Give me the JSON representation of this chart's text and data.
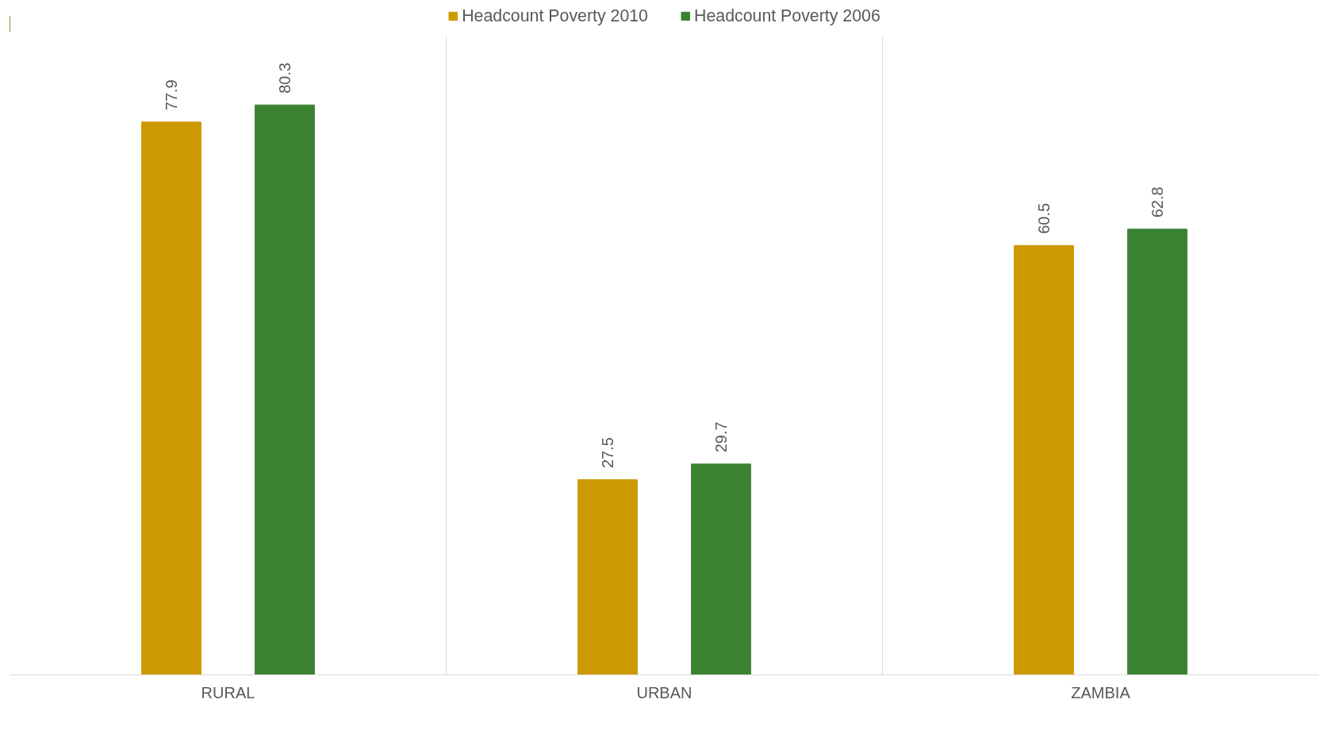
{
  "chart_data": {
    "type": "bar",
    "categories": [
      "RURAL",
      "URBAN",
      "ZAMBIA"
    ],
    "series": [
      {
        "name": "Headcount Poverty 2010",
        "color": "#cc9a00",
        "values": [
          77.9,
          27.5,
          60.5
        ]
      },
      {
        "name": "Headcount Poverty 2006",
        "color": "#3b8132",
        "values": [
          80.3,
          29.7,
          62.8
        ]
      }
    ],
    "ylim": [
      0,
      90
    ],
    "tick_labels": "x",
    "grid": "x",
    "legend": "top",
    "data_labels": true
  }
}
